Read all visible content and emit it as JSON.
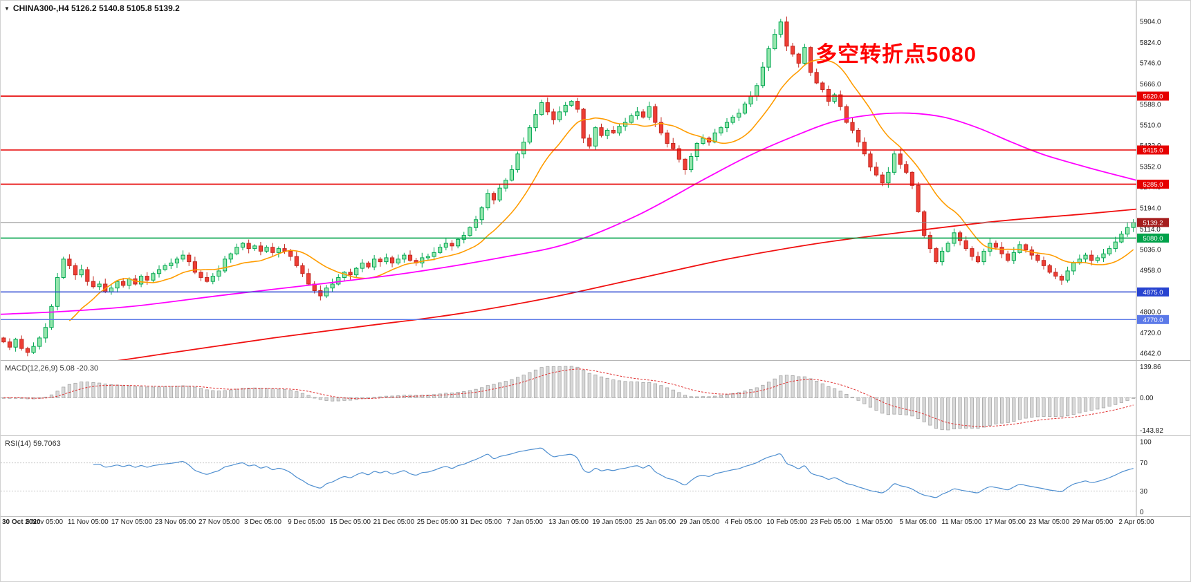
{
  "icons": {
    "dropdown": "▼"
  },
  "header": {
    "symbol_info": "CHINA300-,H4  5126.2 5140.8 5105.8 5139.2"
  },
  "annotation": {
    "text": "多空转折点5080",
    "color": "#ff0000"
  },
  "colors": {
    "candle_up_fill": "#94e6ac",
    "candle_up_stroke": "#00a651",
    "candle_down_fill": "#ee3e35",
    "candle_down_stroke": "#c2271f",
    "ma_fast": "#ff9c00",
    "ma_mid": "#ff00ff",
    "ma_slow": "#f01010",
    "level_red": "#e60000",
    "level_green": "#00a24a",
    "level_blue": "#2743d0",
    "level_blue_light": "#5b79e8",
    "current_price_line": "#8a8a8a",
    "current_price_tag": "#a51d1d",
    "macd_bar_fill": "#d9d9d9",
    "macd_bar_stroke": "#a6a6a6",
    "macd_signal": "#e03030",
    "rsi_line": "#4f8fd0"
  },
  "chart_data": [
    {
      "type": "candlestick",
      "title": "CHINA300-,H4",
      "timeframe": "H4",
      "current_bar": {
        "open": 5126.2,
        "high": 5140.8,
        "low": 5105.8,
        "close": 5139.2
      },
      "ylim": [
        4642.0,
        5904.0
      ],
      "y_ticks": [
        "5904.0",
        "5824.0",
        "5746.0",
        "5666.0",
        "5588.0",
        "5510.0",
        "5432.0",
        "5352.0",
        "5274.0",
        "5194.0",
        "5114.0",
        "5036.0",
        "4958.0",
        "4880.0",
        "4800.0",
        "4720.0",
        "4642.0"
      ],
      "x_labels": [
        "30 Oct 2020",
        "5 Nov 05:00",
        "11 Nov 05:00",
        "17 Nov 05:00",
        "23 Nov 05:00",
        "27 Nov 05:00",
        "3 Dec 05:00",
        "9 Dec 05:00",
        "15 Dec 05:00",
        "21 Dec 05:00",
        "25 Dec 05:00",
        "31 Dec 05:00",
        "7 Jan 05:00",
        "13 Jan 05:00",
        "19 Jan 05:00",
        "25 Jan 05:00",
        "29 Jan 05:00",
        "4 Feb 05:00",
        "10 Feb 05:00",
        "23 Feb 05:00",
        "1 Mar 05:00",
        "5 Mar 05:00",
        "11 Mar 05:00",
        "17 Mar 05:00",
        "23 Mar 05:00",
        "29 Mar 05:00",
        "2 Apr 05:00"
      ],
      "first_open": 4700,
      "closes": [
        4685,
        4665,
        4695,
        4660,
        4645,
        4668,
        4700,
        4740,
        4820,
        4930,
        5000,
        4975,
        4940,
        4960,
        4915,
        4895,
        4905,
        4875,
        4890,
        4915,
        4900,
        4925,
        4905,
        4935,
        4920,
        4945,
        4960,
        4975,
        4985,
        5000,
        5015,
        4990,
        4950,
        4930,
        4915,
        4935,
        4955,
        5000,
        5020,
        5045,
        5060,
        5040,
        5050,
        5030,
        5045,
        5025,
        5040,
        5030,
        5010,
        4975,
        4945,
        4905,
        4880,
        4860,
        4890,
        4905,
        4930,
        4950,
        4940,
        4965,
        4985,
        4970,
        5000,
        4990,
        5005,
        4985,
        5000,
        5015,
        4995,
        4985,
        5005,
        5010,
        5025,
        5045,
        5060,
        5050,
        5075,
        5090,
        5120,
        5150,
        5195,
        5250,
        5225,
        5270,
        5300,
        5340,
        5400,
        5445,
        5500,
        5550,
        5595,
        5560,
        5530,
        5560,
        5585,
        5600,
        5570,
        5460,
        5430,
        5500,
        5470,
        5490,
        5480,
        5505,
        5520,
        5545,
        5560,
        5540,
        5580,
        5520,
        5480,
        5440,
        5420,
        5380,
        5340,
        5390,
        5440,
        5460,
        5445,
        5480,
        5500,
        5520,
        5540,
        5555,
        5590,
        5620,
        5660,
        5730,
        5800,
        5855,
        5902,
        5810,
        5780,
        5745,
        5805,
        5710,
        5670,
        5645,
        5600,
        5625,
        5580,
        5520,
        5490,
        5445,
        5400,
        5350,
        5320,
        5290,
        5330,
        5400,
        5360,
        5330,
        5280,
        5180,
        5090,
        5040,
        4990,
        5030,
        5060,
        5100,
        5070,
        5040,
        5010,
        4990,
        5030,
        5060,
        5045,
        5020,
        4995,
        5025,
        5055,
        5035,
        5015,
        4995,
        4975,
        4950,
        4935,
        4920,
        4955,
        4985,
        5000,
        5015,
        4995,
        5005,
        5020,
        5040,
        5065,
        5095,
        5120,
        5139.2
      ],
      "levels": [
        {
          "price": 5620.0,
          "label": "5620.0",
          "style": "red"
        },
        {
          "price": 5415.0,
          "label": "5415.0",
          "style": "red"
        },
        {
          "price": 5285.0,
          "label": "5285.0",
          "style": "red"
        },
        {
          "price": 5139.2,
          "label": "5139.2",
          "style": "current"
        },
        {
          "price": 5080.0,
          "label": "5080.0",
          "style": "green"
        },
        {
          "price": 4875.0,
          "label": "4875.0",
          "style": "blue"
        },
        {
          "price": 4770.0,
          "label": "4770.0",
          "style": "blue_light"
        }
      ],
      "moving_averages": [
        {
          "name": "fast",
          "method": "sma",
          "period": 12
        },
        {
          "name": "mid",
          "points": [
            [
              0,
              4790
            ],
            [
              0.06,
              4802
            ],
            [
              0.12,
              4822
            ],
            [
              0.2,
              4865
            ],
            [
              0.28,
              4905
            ],
            [
              0.36,
              4948
            ],
            [
              0.44,
              5005
            ],
            [
              0.5,
              5060
            ],
            [
              0.56,
              5165
            ],
            [
              0.62,
              5305
            ],
            [
              0.66,
              5395
            ],
            [
              0.7,
              5470
            ],
            [
              0.735,
              5525
            ],
            [
              0.77,
              5550
            ],
            [
              0.8,
              5555
            ],
            [
              0.83,
              5540
            ],
            [
              0.86,
              5500
            ],
            [
              0.89,
              5445
            ],
            [
              0.92,
              5395
            ],
            [
              0.96,
              5345
            ],
            [
              1,
              5300
            ]
          ]
        },
        {
          "name": "slow",
          "points": [
            [
              0,
              4560
            ],
            [
              0.08,
              4600
            ],
            [
              0.16,
              4650
            ],
            [
              0.24,
              4700
            ],
            [
              0.32,
              4745
            ],
            [
              0.4,
              4790
            ],
            [
              0.48,
              4850
            ],
            [
              0.56,
              4925
            ],
            [
              0.64,
              5000
            ],
            [
              0.72,
              5060
            ],
            [
              0.8,
              5105
            ],
            [
              0.88,
              5145
            ],
            [
              0.95,
              5170
            ],
            [
              1,
              5190
            ]
          ]
        }
      ]
    },
    {
      "type": "macd",
      "label": "MACD(12,26,9) 5.08 -20.30",
      "params": [
        12,
        26,
        9
      ],
      "values_display": {
        "macd": 5.08,
        "signal": -20.3
      },
      "y_ticks": [
        "139.86",
        "0.00",
        "-143.82"
      ],
      "y_tick_values": [
        139.86,
        0.0,
        -143.82
      ]
    },
    {
      "type": "rsi",
      "label": "RSI(14) 59.7063",
      "period": 14,
      "value_display": 59.7063,
      "y_ticks": [
        "100",
        "70",
        "30",
        "0"
      ],
      "y_tick_values": [
        100,
        70,
        30,
        0
      ],
      "levels": [
        70,
        30
      ]
    }
  ]
}
